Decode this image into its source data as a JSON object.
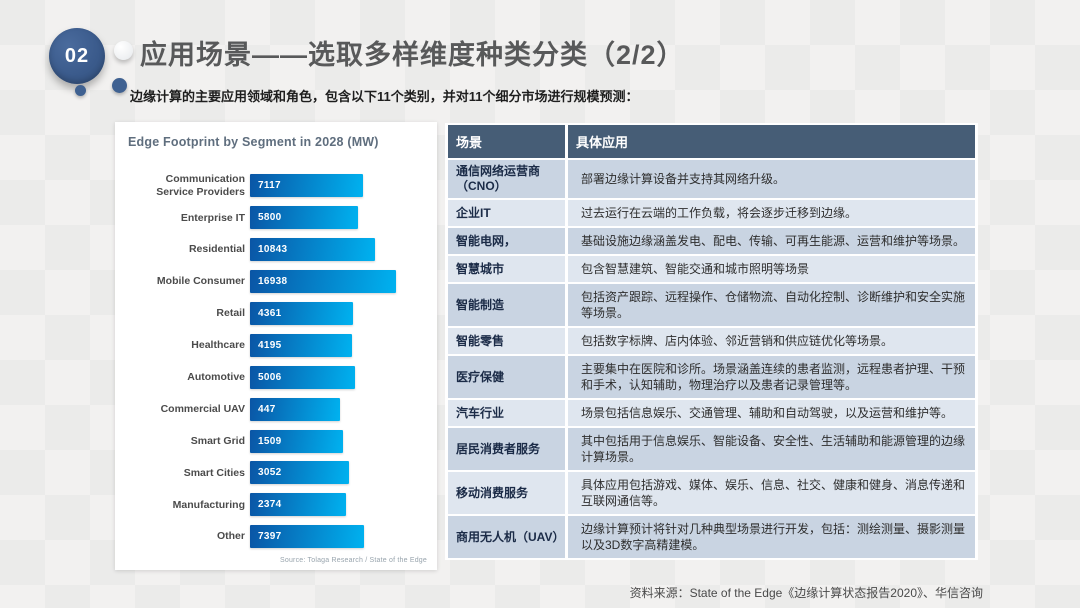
{
  "slide": {
    "badge": "02",
    "title": "应用场景——选取多样维度种类分类（2/2）",
    "subtitle": "边缘计算的主要应用领域和角色，包含以下11个类别，并对11个细分市场进行规模预测：",
    "footer": "资料来源：State of the Edge《边缘计算状态报告2020》、华信咨询"
  },
  "chart_data": {
    "type": "bar",
    "orientation": "horizontal",
    "title": "Edge Footprint by Segment in 2028 (MW)",
    "source": "Source: Tolaga Research / State of the Edge",
    "categories": [
      "Communication Service Providers",
      "Enterprise IT",
      "Residential",
      "Mobile Consumer",
      "Retail",
      "Healthcare",
      "Automotive",
      "Commercial UAV",
      "Smart Grid",
      "Smart Cities",
      "Manufacturing",
      "Other"
    ],
    "values": [
      7117,
      5800,
      10843,
      16938,
      4361,
      4195,
      5006,
      447,
      1509,
      3052,
      2374,
      7397
    ],
    "value_labels_inside_bars": true,
    "grid": false,
    "legend": "none",
    "colors": {
      "bar_gradient_start": "#0a55a5",
      "bar_gradient_end": "#00b2f0",
      "value_label": "#ffffff"
    }
  },
  "table": {
    "headers": [
      "场景",
      "具体应用"
    ],
    "colors": {
      "header_bg": "#465d76",
      "row_odd_bg": "#c9d4e2",
      "row_even_bg": "#dfe6ef"
    },
    "rows": [
      {
        "scene": "通信网络运营商（CNO）",
        "application": "部署边缘计算设备并支持其网络升级。"
      },
      {
        "scene": "企业IT",
        "application": "过去运行在云端的工作负载，将会逐步迁移到边缘。"
      },
      {
        "scene": "智能电网，",
        "application": "基础设施边缘涵盖发电、配电、传输、可再生能源、运营和维护等场景。"
      },
      {
        "scene": "智慧城市",
        "application": "包含智慧建筑、智能交通和城市照明等场景"
      },
      {
        "scene": "智能制造",
        "application": "包括资产跟踪、远程操作、仓储物流、自动化控制、诊断维护和安全实施等场景。"
      },
      {
        "scene": "智能零售",
        "application": "包括数字标牌、店内体验、邻近营销和供应链优化等场景。"
      },
      {
        "scene": "医疗保健",
        "application": "主要集中在医院和诊所。场景涵盖连续的患者监测，远程患者护理、干预和手术，认知辅助，物理治疗以及患者记录管理等。"
      },
      {
        "scene": "汽车行业",
        "application": "场景包括信息娱乐、交通管理、辅助和自动驾驶，以及运营和维护等。"
      },
      {
        "scene": "居民消费者服务",
        "application": "其中包括用于信息娱乐、智能设备、安全性、生活辅助和能源管理的边缘计算场景。"
      },
      {
        "scene": "移动消费服务",
        "application": "具体应用包括游戏、媒体、娱乐、信息、社交、健康和健身、消息传递和互联网通信等。"
      },
      {
        "scene": "商用无人机（UAV）",
        "application": "边缘计算预计将针对几种典型场景进行开发，包括：测绘测量、摄影测量以及3D数字高精建模。"
      }
    ]
  },
  "colors": {
    "badge_bg": "#3b5b8c",
    "accent_navy": "#3f6191",
    "title_text": "#58595a",
    "slide_bg": "#efeeed"
  }
}
